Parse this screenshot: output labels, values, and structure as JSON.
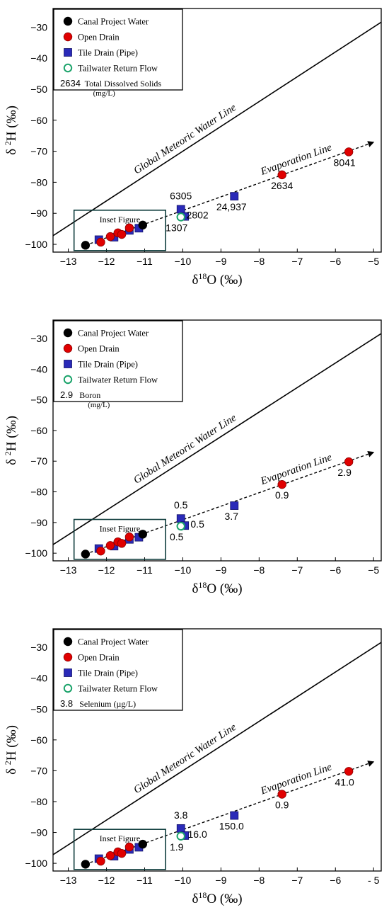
{
  "chart_data": [
    {
      "type": "scatter",
      "xlabel_base": "δ",
      "xlabel_sup": "18",
      "xlabel_rest": "O (‰)",
      "ylabel_base": "δ",
      "ylabel_sup": "2",
      "ylabel_rest": "H (‰)",
      "xlim": [
        -13.4,
        -4.8
      ],
      "ylim": [
        -102.5,
        -24
      ],
      "xticks": [
        "−13",
        "−12",
        "−11",
        "−10",
        "−9",
        "−8",
        "−7",
        "−6",
        "−5"
      ],
      "yticks": [
        "−30",
        "−40",
        "−50",
        "−60",
        "−70",
        "−80",
        "−90",
        "−100"
      ],
      "legend": {
        "placement": "top-left",
        "entries": [
          "Canal Project Water",
          "Open Drain",
          "Tile Drain (Pipe)",
          "Tailwater Return Flow"
        ],
        "sample_value": "2634",
        "sample_label": "Total Dissolved Solids",
        "sample_unit": "(mg/L)"
      },
      "gmwl_label": "Global Meteoric Water Line",
      "evap_label": "Evaporation Line",
      "inset_label": "Inset Figure",
      "series": [
        {
          "name": "Canal Project Water",
          "x": [
            -12.55,
            -11.05
          ],
          "y": [
            -100.3,
            -93.8
          ]
        },
        {
          "name": "Open Drain",
          "x": [
            -12.15,
            -11.9,
            -11.7,
            -11.6,
            -11.4,
            -7.4,
            -5.65
          ],
          "y": [
            -99.3,
            -97.5,
            -96.3,
            -96.8,
            -94.7,
            -77.6,
            -70.2
          ]
        },
        {
          "name": "Tile Drain (Pipe)",
          "x": [
            -12.2,
            -11.8,
            -11.4,
            -11.15,
            -10.05,
            -9.95,
            -8.65
          ],
          "y": [
            -98.5,
            -97.7,
            -95.5,
            -94.8,
            -88.7,
            -91.0,
            -84.5
          ]
        },
        {
          "name": "Tailwater Return Flow",
          "x": [
            -10.05
          ],
          "y": [
            -91.2
          ]
        }
      ],
      "annotations": [
        {
          "text": "8041",
          "x": -5.65,
          "y": -70.2
        },
        {
          "text": "2634",
          "x": -7.4,
          "y": -77.6
        },
        {
          "text": "24,937",
          "x": -8.65,
          "y": -84.5
        },
        {
          "text": "6305",
          "x": -10.05,
          "y": -88.7
        },
        {
          "text": "2802",
          "x": -9.95,
          "y": -91.0
        },
        {
          "text": "1307",
          "x": -10.05,
          "y": -91.2
        }
      ]
    },
    {
      "type": "scatter",
      "xlabel_base": "δ",
      "xlabel_sup": "18",
      "xlabel_rest": "O (‰)",
      "ylabel_base": "δ",
      "ylabel_sup": "2",
      "ylabel_rest": "H (‰)",
      "xlim": [
        -13.4,
        -4.8
      ],
      "ylim": [
        -102.5,
        -24
      ],
      "xticks": [
        "−13",
        "−12",
        "−11",
        "−10",
        "−9",
        "−8",
        "−7",
        "−6",
        "−5"
      ],
      "yticks": [
        "−30",
        "−40",
        "−50",
        "−60",
        "−70",
        "−80",
        "−90",
        "−100"
      ],
      "legend": {
        "placement": "top-left",
        "entries": [
          "Canal Project Water",
          "Open Drain",
          "Tile Drain (Pipe)",
          "Tailwater Return Flow"
        ],
        "sample_value": "2.9",
        "sample_label": "Boron",
        "sample_unit": "(mg/L)"
      },
      "gmwl_label": "Global Meteoric Water Line",
      "evap_label": "Evaporation Line",
      "inset_label": "Inset Figure",
      "series": [
        {
          "name": "Canal Project Water",
          "x": [
            -12.55,
            -11.05
          ],
          "y": [
            -100.3,
            -93.8
          ]
        },
        {
          "name": "Open Drain",
          "x": [
            -12.15,
            -11.9,
            -11.7,
            -11.6,
            -11.4,
            -7.4,
            -5.65
          ],
          "y": [
            -99.3,
            -97.5,
            -96.3,
            -96.8,
            -94.7,
            -77.6,
            -70.2
          ]
        },
        {
          "name": "Tile Drain (Pipe)",
          "x": [
            -12.2,
            -11.8,
            -11.4,
            -11.15,
            -10.05,
            -9.95,
            -8.65
          ],
          "y": [
            -98.5,
            -97.7,
            -95.5,
            -94.8,
            -88.7,
            -91.0,
            -84.5
          ]
        },
        {
          "name": "Tailwater Return Flow",
          "x": [
            -10.05
          ],
          "y": [
            -91.2
          ]
        }
      ],
      "annotations": [
        {
          "text": "2.9",
          "x": -5.65,
          "y": -70.2
        },
        {
          "text": "0.9",
          "x": -7.4,
          "y": -77.6
        },
        {
          "text": "3.7",
          "x": -8.65,
          "y": -84.5
        },
        {
          "text": "0.5",
          "x": -10.05,
          "y": -88.7
        },
        {
          "text": "0.5",
          "x": -9.95,
          "y": -91.0
        },
        {
          "text": "0.5",
          "x": -10.05,
          "y": -91.2
        }
      ]
    },
    {
      "type": "scatter",
      "xlabel_base": "δ",
      "xlabel_sup": "18",
      "xlabel_rest": "O (‰)",
      "ylabel_base": "δ",
      "ylabel_sup": "2",
      "ylabel_rest": "H (‰)",
      "xlim": [
        -13.4,
        -4.8
      ],
      "ylim": [
        -102.5,
        -24
      ],
      "xticks": [
        "−13",
        "−12",
        "−11",
        "−10",
        "−9",
        "−8",
        "−7",
        "−6",
        "- 5"
      ],
      "yticks": [
        "−30",
        "−40",
        "−50",
        "−60",
        "−70",
        "−80",
        "−90",
        "−100"
      ],
      "legend": {
        "placement": "top-left",
        "entries": [
          "Canal Project Water",
          "Open Drain",
          "Tile Drain (Pipe)",
          "Tailwater Return Flow"
        ],
        "sample_value": "3.8",
        "sample_label": "Selenium (µg/L)",
        "sample_unit": ""
      },
      "gmwl_label": "Global Meteoric Water Line",
      "evap_label": "Evaporation Line",
      "inset_label": "Inset Figure",
      "series": [
        {
          "name": "Canal Project Water",
          "x": [
            -12.55,
            -11.05
          ],
          "y": [
            -100.3,
            -93.8
          ]
        },
        {
          "name": "Open Drain",
          "x": [
            -12.15,
            -11.9,
            -11.7,
            -11.6,
            -11.4,
            -7.4,
            -5.65
          ],
          "y": [
            -99.3,
            -97.5,
            -96.3,
            -96.8,
            -94.7,
            -77.6,
            -70.2
          ]
        },
        {
          "name": "Tile Drain (Pipe)",
          "x": [
            -12.2,
            -11.8,
            -11.4,
            -11.15,
            -10.05,
            -9.95,
            -8.65
          ],
          "y": [
            -98.5,
            -97.7,
            -95.5,
            -94.8,
            -88.7,
            -91.0,
            -84.5
          ]
        },
        {
          "name": "Tailwater Return Flow",
          "x": [
            -10.05
          ],
          "y": [
            -91.2
          ]
        }
      ],
      "annotations": [
        {
          "text": "41.0",
          "x": -5.65,
          "y": -70.2
        },
        {
          "text": "0.9",
          "x": -7.4,
          "y": -77.6
        },
        {
          "text": "150.0",
          "x": -8.65,
          "y": -84.5
        },
        {
          "text": "3.8",
          "x": -10.05,
          "y": -88.7
        },
        {
          "text": "16.0",
          "x": -9.95,
          "y": -91.0
        },
        {
          "text": "1.9",
          "x": -10.05,
          "y": -91.2
        }
      ]
    }
  ],
  "colors": {
    "canal": "#000000",
    "open_drain": "#e00000",
    "tile_drain": "#2a2ab8",
    "tailwater": "#1aa36a",
    "axis": "#000000",
    "inset_box": "#0f3d3d"
  }
}
